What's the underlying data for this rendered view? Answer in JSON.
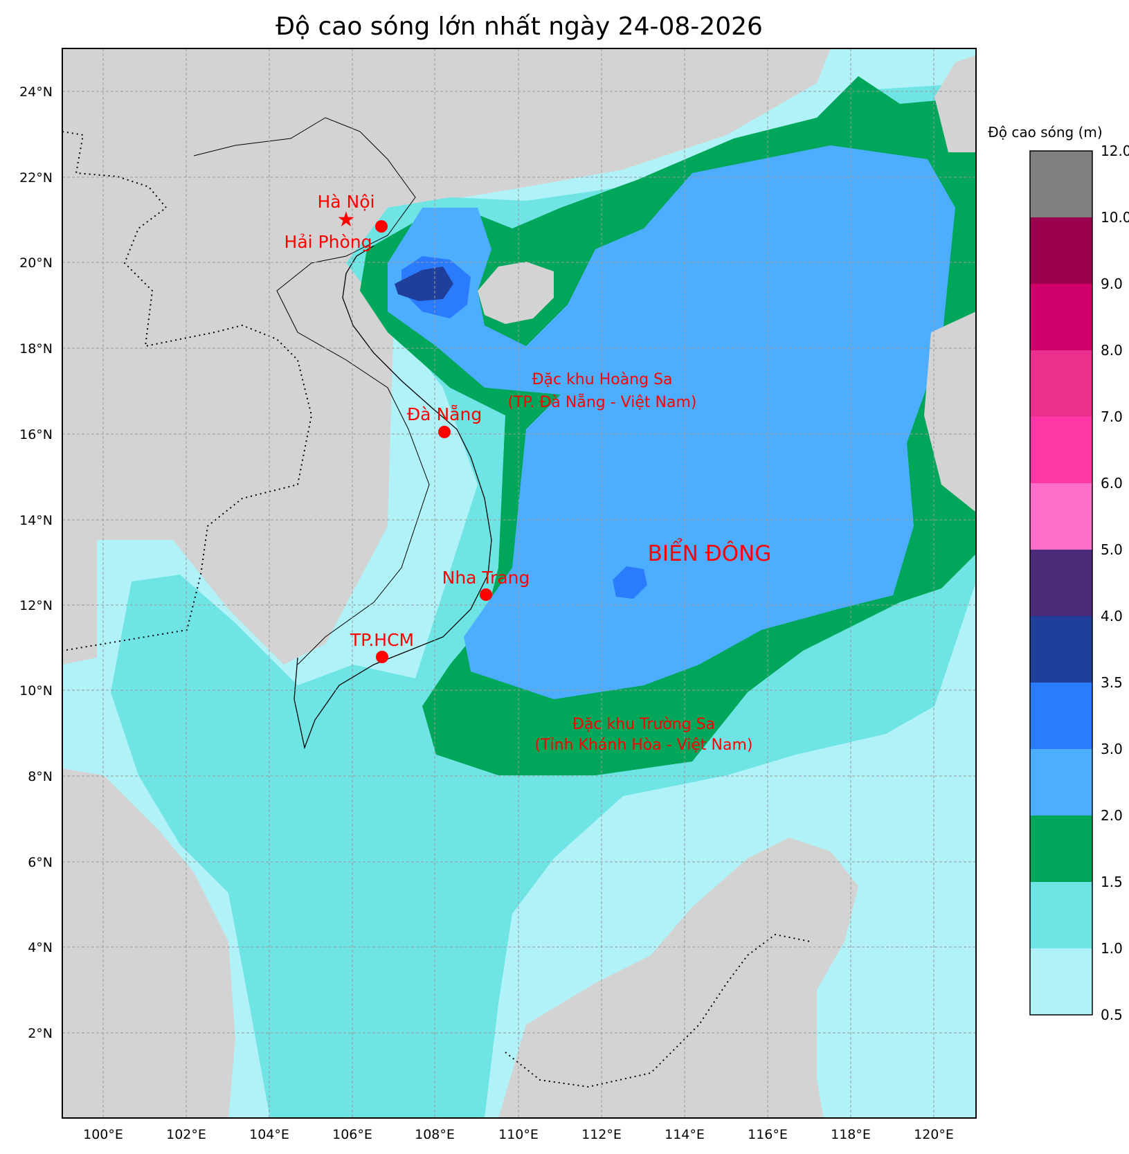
{
  "title": "Độ cao sóng lớn nhất ngày 24-08-2026",
  "colorbar": {
    "label": "Độ cao sóng (m)",
    "ticks": [
      "0.5",
      "1.0",
      "1.5",
      "2.0",
      "3.0",
      "3.5",
      "4.0",
      "5.0",
      "6.0",
      "7.0",
      "8.0",
      "9.0",
      "10.0",
      "12.0"
    ],
    "colors": [
      "#b0f2f8",
      "#6ee4e4",
      "#00a65a",
      "#4daeff",
      "#2b7bff",
      "#1f3f9a",
      "#4b2a7a",
      "#ff6ec8",
      "#ff37a6",
      "#e8308c",
      "#d0006a",
      "#9b004c",
      "#808080"
    ]
  },
  "axes": {
    "lon_labels": [
      "100°E",
      "102°E",
      "104°E",
      "106°E",
      "108°E",
      "110°E",
      "112°E",
      "114°E",
      "116°E",
      "118°E",
      "120°E"
    ],
    "lat_labels": [
      "24°N",
      "22°N",
      "20°N",
      "18°N",
      "16°N",
      "14°N",
      "12°N",
      "10°N",
      "8°N",
      "6°N",
      "4°N",
      "2°N"
    ]
  },
  "cities": [
    {
      "name": "Hà Nội",
      "symbol": "star"
    },
    {
      "name": "Hải Phòng",
      "symbol": "dot"
    },
    {
      "name": "Đà Nẵng",
      "symbol": "dot"
    },
    {
      "name": "Nha Trang",
      "symbol": "dot"
    },
    {
      "name": "TP.HCM",
      "symbol": "dot"
    }
  ],
  "annotations": {
    "sea": "BIỂN ĐÔNG",
    "hoang_sa_1": "Đặc khu Hoàng Sa",
    "hoang_sa_2": "(TP. Đà Nẵng - Việt Nam)",
    "truong_sa_1": "Đặc khu Trường Sa",
    "truong_sa_2": "(Tỉnh Khánh Hòa - Việt Nam)"
  },
  "colors": {
    "land": "#d3d3d3",
    "marker": "#ff0000",
    "label": "#ff0000"
  }
}
